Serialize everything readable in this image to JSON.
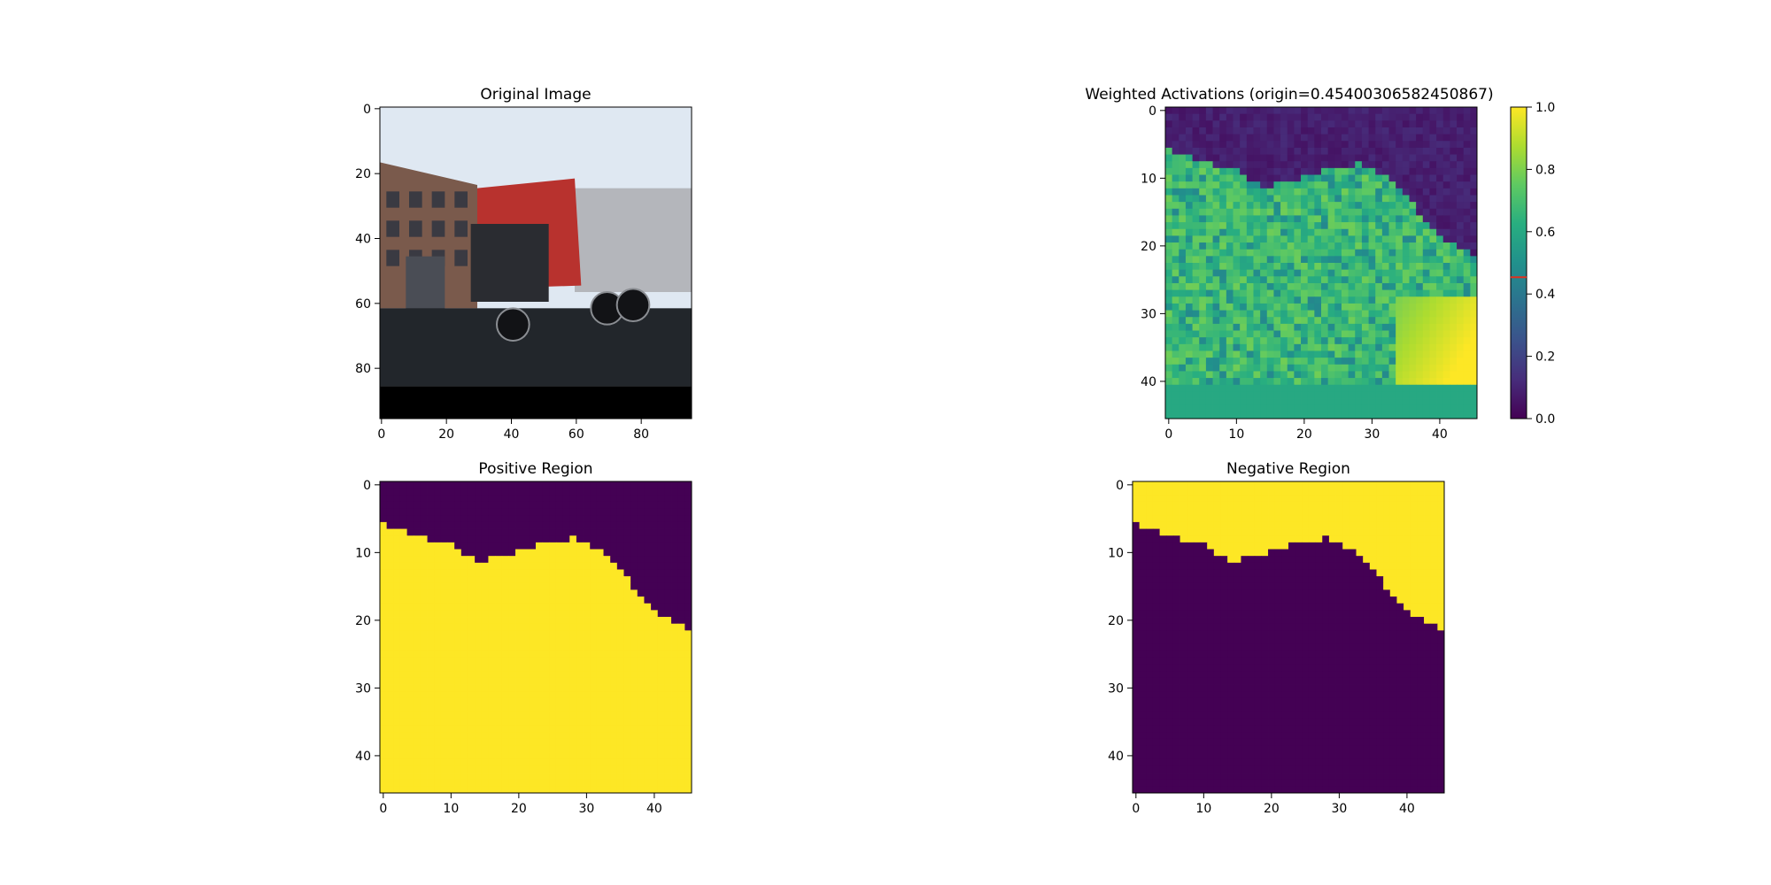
{
  "figure": {
    "colors": {
      "viridis_low": "#440154",
      "viridis_high": "#fde725",
      "origin_marker": "#e0301e",
      "sky": "#dfe8f2",
      "road": "#22262b",
      "cab_red": "#b8322e"
    }
  },
  "chart_data": [
    {
      "panel": "original",
      "type": "heatmap",
      "title": "Original Image",
      "xlabel": "",
      "ylabel": "",
      "image_size": [
        96,
        96
      ],
      "xlim": [
        -0.5,
        95.5
      ],
      "ylim": [
        95.5,
        -0.5
      ],
      "xticks": [
        "0",
        "20",
        "40",
        "60",
        "80"
      ],
      "yticks": [
        "0",
        "20",
        "40",
        "60",
        "80"
      ],
      "grid": false,
      "content": "photograph of a semi-truck with red cab and trailer, brick building on the left, black padding band at the bottom"
    },
    {
      "panel": "weighted",
      "type": "heatmap",
      "title": "Weighted Activations (origin=0.45400306582450867)",
      "xlabel": "",
      "ylabel": "",
      "grid_size": [
        46,
        46
      ],
      "xlim": [
        -0.5,
        45.5
      ],
      "ylim": [
        45.5,
        -0.5
      ],
      "xticks": [
        "0",
        "10",
        "20",
        "30",
        "40"
      ],
      "yticks": [
        "0",
        "10",
        "20",
        "30",
        "40"
      ],
      "colormap": "viridis",
      "colorbar": {
        "vmin": 0.0,
        "vmax": 1.0,
        "ticks": [
          "0.0",
          "0.2",
          "0.4",
          "0.6",
          "0.8",
          "1.0"
        ],
        "origin": 0.45400306582450867
      },
      "grid": false
    },
    {
      "panel": "positive",
      "type": "heatmap",
      "title": "Positive Region",
      "xlabel": "",
      "ylabel": "",
      "grid_size": [
        46,
        46
      ],
      "xlim": [
        -0.5,
        45.5
      ],
      "ylim": [
        45.5,
        -0.5
      ],
      "xticks": [
        "0",
        "10",
        "20",
        "30",
        "40"
      ],
      "yticks": [
        "0",
        "10",
        "20",
        "30",
        "40"
      ],
      "colormap": "viridis",
      "values": "binary mask: 1 where weighted activation >= origin",
      "grid": false
    },
    {
      "panel": "negative",
      "type": "heatmap",
      "title": "Negative Region",
      "xlabel": "",
      "ylabel": "",
      "grid_size": [
        46,
        46
      ],
      "xlim": [
        -0.5,
        45.5
      ],
      "ylim": [
        45.5,
        -0.5
      ],
      "xticks": [
        "0",
        "10",
        "20",
        "30",
        "40"
      ],
      "yticks": [
        "0",
        "10",
        "20",
        "30",
        "40"
      ],
      "colormap": "viridis",
      "values": "binary mask: complement of positive region",
      "grid": false
    }
  ]
}
